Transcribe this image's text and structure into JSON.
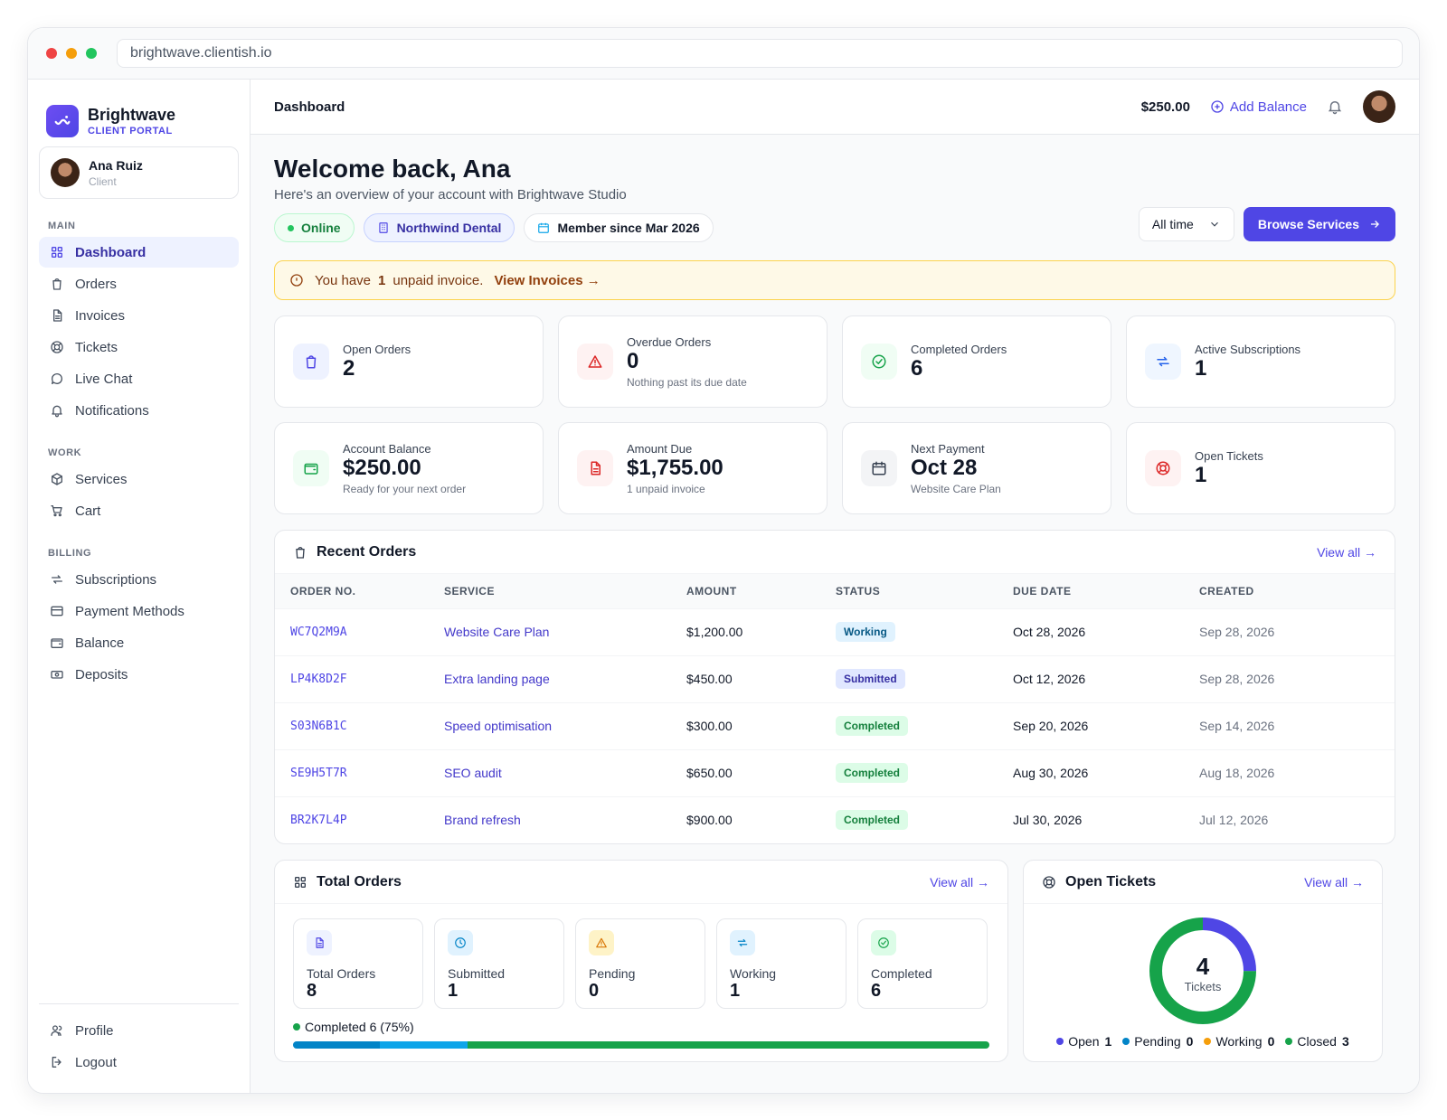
{
  "browser": {
    "url": "brightwave.clientish.io"
  },
  "brand": {
    "name": "Brightwave",
    "subtitle": "CLIENT PORTAL"
  },
  "user": {
    "name": "Ana Ruiz",
    "role": "Client"
  },
  "sidebar": {
    "sections": [
      {
        "label": "MAIN",
        "items": [
          {
            "label": "Dashboard",
            "icon": "grid-icon",
            "active": true
          },
          {
            "label": "Orders",
            "icon": "bag-icon"
          },
          {
            "label": "Invoices",
            "icon": "file-icon"
          },
          {
            "label": "Tickets",
            "icon": "lifebuoy-icon"
          },
          {
            "label": "Live Chat",
            "icon": "chat-icon"
          },
          {
            "label": "Notifications",
            "icon": "bell-icon"
          }
        ]
      },
      {
        "label": "WORK",
        "items": [
          {
            "label": "Services",
            "icon": "box-icon"
          },
          {
            "label": "Cart",
            "icon": "cart-icon"
          }
        ]
      },
      {
        "label": "BILLING",
        "items": [
          {
            "label": "Subscriptions",
            "icon": "repeat-icon"
          },
          {
            "label": "Payment Methods",
            "icon": "card-icon"
          },
          {
            "label": "Balance",
            "icon": "wallet-icon"
          },
          {
            "label": "Deposits",
            "icon": "cash-icon"
          }
        ]
      }
    ],
    "bottom": [
      {
        "label": "Profile",
        "icon": "users-icon"
      },
      {
        "label": "Logout",
        "icon": "logout-icon"
      }
    ]
  },
  "topbar": {
    "breadcrumb": "Dashboard",
    "balance": "$250.00",
    "add_balance": "Add Balance"
  },
  "welcome": {
    "title": "Welcome back, Ana",
    "subtitle": "Here's an overview of your account with Brightwave Studio",
    "status": "Online",
    "company": "Northwind Dental",
    "member_since": "Member since Mar 2026"
  },
  "actions": {
    "range": "All time",
    "browse": "Browse Services"
  },
  "alert": {
    "prefix": "You have",
    "count": "1",
    "suffix": "unpaid invoice.",
    "link": "View Invoices →"
  },
  "stats": [
    {
      "label": "Open Orders",
      "value": "2",
      "note": "",
      "icon": "bag-icon",
      "bg": "#eef2ff",
      "fg": "#4f46e5"
    },
    {
      "label": "Overdue Orders",
      "value": "0",
      "note": "Nothing past its due date",
      "icon": "alert-triangle-icon",
      "bg": "#fef2f2",
      "fg": "#dc2626"
    },
    {
      "label": "Completed Orders",
      "value": "6",
      "note": "",
      "icon": "check-circle-icon",
      "bg": "#f0fdf4",
      "fg": "#16a34a"
    },
    {
      "label": "Active Subscriptions",
      "value": "1",
      "note": "",
      "icon": "repeat-icon",
      "bg": "#eff6ff",
      "fg": "#2563eb"
    },
    {
      "label": "Account Balance",
      "value": "$250.00",
      "note": "Ready for your next order",
      "icon": "wallet-icon",
      "bg": "#f0fdf4",
      "fg": "#16a34a"
    },
    {
      "label": "Amount Due",
      "value": "$1,755.00",
      "note": "1 unpaid invoice",
      "icon": "file-icon",
      "bg": "#fef2f2",
      "fg": "#dc2626"
    },
    {
      "label": "Next Payment",
      "value": "Oct 28",
      "note": "Website Care Plan",
      "icon": "calendar-icon",
      "bg": "#f3f4f6",
      "fg": "#374151"
    },
    {
      "label": "Open Tickets",
      "value": "1",
      "note": "",
      "icon": "lifebuoy-icon",
      "bg": "#fef2f2",
      "fg": "#dc2626"
    }
  ],
  "recent_orders": {
    "title": "Recent Orders",
    "view_all": "View all →",
    "columns": [
      "ORDER NO.",
      "SERVICE",
      "AMOUNT",
      "STATUS",
      "DUE DATE",
      "CREATED"
    ],
    "rows": [
      {
        "order": "WC7Q2M9A",
        "service": "Website Care Plan",
        "amount": "$1,200.00",
        "status": "Working",
        "due": "Oct 28, 2026",
        "created": "Sep 28, 2026"
      },
      {
        "order": "LP4K8D2F",
        "service": "Extra landing page",
        "amount": "$450.00",
        "status": "Submitted",
        "due": "Oct 12, 2026",
        "created": "Sep 28, 2026"
      },
      {
        "order": "S03N6B1C",
        "service": "Speed optimisation",
        "amount": "$300.00",
        "status": "Completed",
        "due": "Sep 20, 2026",
        "created": "Sep 14, 2026"
      },
      {
        "order": "SE9H5T7R",
        "service": "SEO audit",
        "amount": "$650.00",
        "status": "Completed",
        "due": "Aug 30, 2026",
        "created": "Aug 18, 2026"
      },
      {
        "order": "BR2K7L4P",
        "service": "Brand refresh",
        "amount": "$900.00",
        "status": "Completed",
        "due": "Jul 30, 2026",
        "created": "Jul 12, 2026"
      }
    ]
  },
  "total_orders": {
    "title": "Total Orders",
    "view_all": "View all →",
    "items": [
      {
        "label": "Total Orders",
        "value": "8",
        "icon": "file-icon",
        "bg": "#eef2ff",
        "fg": "#4f46e5"
      },
      {
        "label": "Submitted",
        "value": "1",
        "icon": "clock-icon",
        "bg": "#e0f2fe",
        "fg": "#0284c7"
      },
      {
        "label": "Pending",
        "value": "0",
        "icon": "alert-triangle-icon",
        "bg": "#fef3c7",
        "fg": "#d97706"
      },
      {
        "label": "Working",
        "value": "1",
        "icon": "repeat-icon",
        "bg": "#e0f2fe",
        "fg": "#0284c7"
      },
      {
        "label": "Completed",
        "value": "6",
        "icon": "check-circle-icon",
        "bg": "#dcfce7",
        "fg": "#16a34a"
      }
    ],
    "progress_label": "Completed 6 (75%)",
    "progress_segments": [
      {
        "fraction": 0.125,
        "color": "#0284c7"
      },
      {
        "fraction": 0.125,
        "color": "#0ea5e9"
      },
      {
        "fraction": 0.75,
        "color": "#16a34a"
      }
    ]
  },
  "open_tickets": {
    "title": "Open Tickets",
    "view_all": "View all →",
    "total": "4",
    "total_label": "Tickets",
    "segments": [
      {
        "name": "Open",
        "value": 1,
        "color": "#4f46e5"
      },
      {
        "name": "Pending",
        "value": 0,
        "color": "#0284c7"
      },
      {
        "name": "Working",
        "value": 0,
        "color": "#f59e0b"
      },
      {
        "name": "Closed",
        "value": 3,
        "color": "#16a34a"
      }
    ]
  }
}
